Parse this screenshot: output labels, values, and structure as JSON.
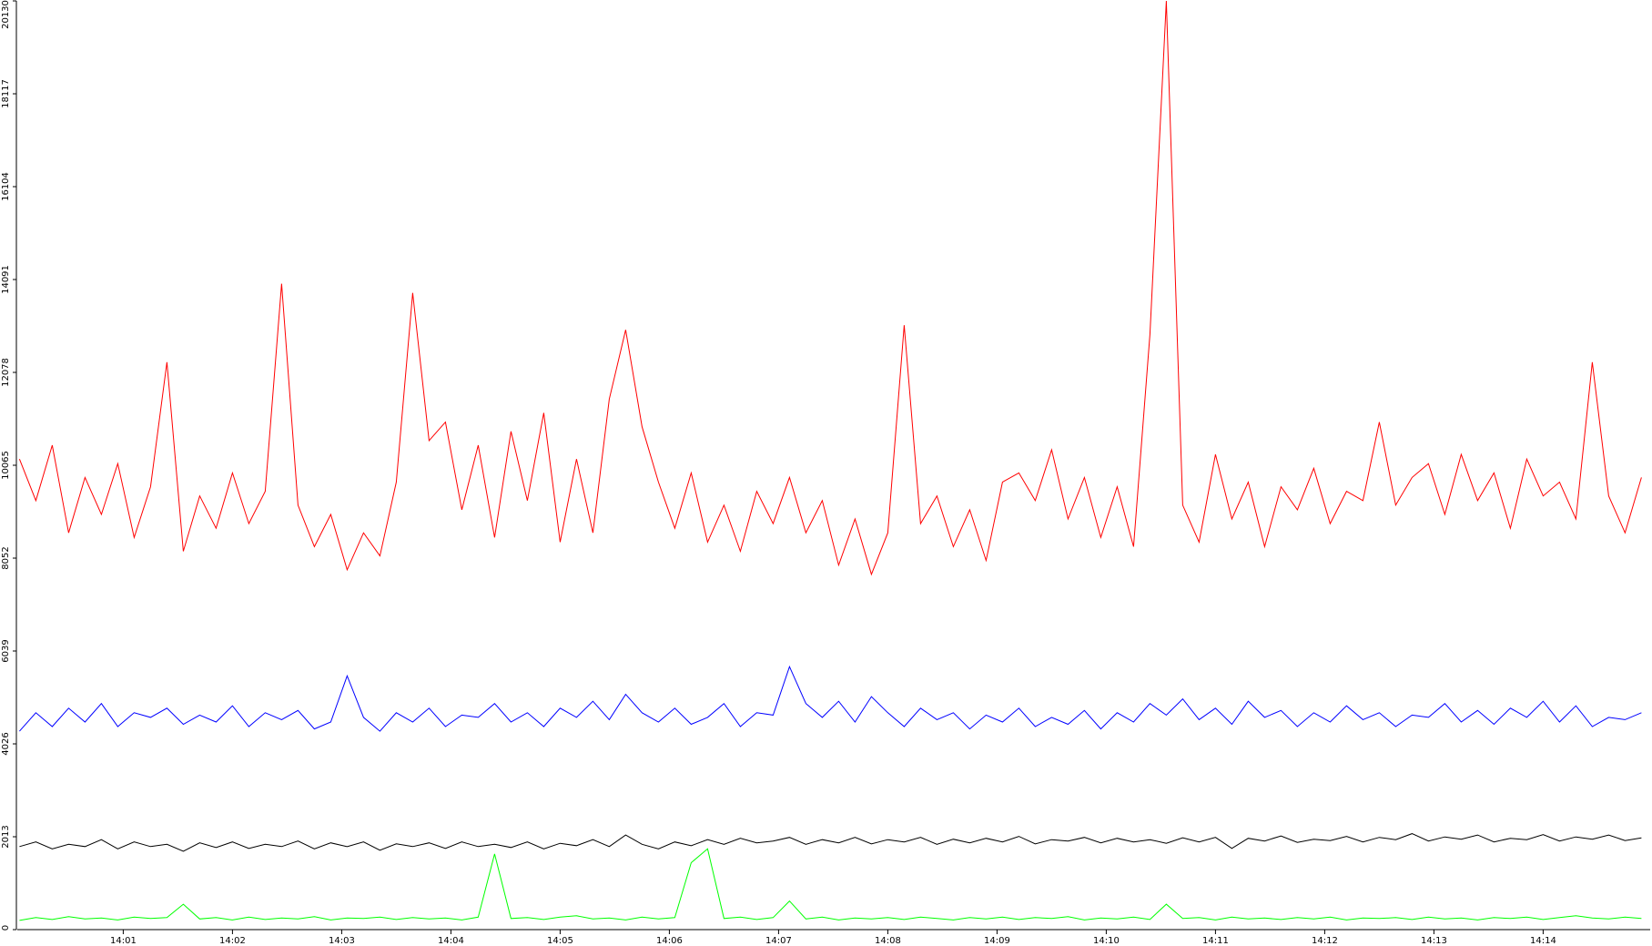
{
  "chart_data": {
    "type": "line",
    "x": [
      0.05,
      0.2,
      0.35,
      0.5,
      0.65,
      0.8,
      0.95,
      1.1,
      1.25,
      1.4,
      1.55,
      1.7,
      1.85,
      2,
      2.15,
      2.3,
      2.45,
      2.6,
      2.75,
      2.9,
      3.05,
      3.2,
      3.35,
      3.5,
      3.65,
      3.8,
      3.95,
      4.1,
      4.25,
      4.4,
      4.55,
      4.7,
      4.85,
      5,
      5.15,
      5.3,
      5.45,
      5.6,
      5.75,
      5.9,
      6.05,
      6.2,
      6.35,
      6.5,
      6.65,
      6.8,
      6.95,
      7.1,
      7.25,
      7.4,
      7.55,
      7.7,
      7.85,
      8,
      8.15,
      8.3,
      8.45,
      8.6,
      8.75,
      8.9,
      9.05,
      9.2,
      9.35,
      9.5,
      9.65,
      9.8,
      9.95,
      10.1,
      10.25,
      10.4,
      10.55,
      10.7,
      10.85,
      11,
      11.15,
      11.3,
      11.45,
      11.6,
      11.75,
      11.9,
      12.05,
      12.2,
      12.35,
      12.5,
      12.65,
      12.8,
      12.95,
      13.1,
      13.25,
      13.4,
      13.55,
      13.7,
      13.85,
      14,
      14.15,
      14.3,
      14.45,
      14.6,
      14.75,
      14.9
    ],
    "series": [
      {
        "color": "#ff0000",
        "values": [
          10200,
          9300,
          10500,
          8600,
          9800,
          9000,
          10100,
          8500,
          9600,
          12300,
          8200,
          9400,
          8700,
          9900,
          8800,
          9500,
          14000,
          9200,
          8300,
          9000,
          7800,
          8600,
          8100,
          9700,
          13800,
          10600,
          11000,
          9100,
          10500,
          8500,
          10800,
          9300,
          11200,
          8400,
          10200,
          8600,
          11500,
          13000,
          10900,
          9700,
          8700,
          9900,
          8400,
          9200,
          8200,
          9500,
          8800,
          9800,
          8600,
          9300,
          7900,
          8900,
          7700,
          8600,
          13100,
          8800,
          9400,
          8300,
          9100,
          8000,
          9700,
          9900,
          9300,
          10400,
          8900,
          9800,
          8500,
          9600,
          8300,
          12900,
          20130,
          9200,
          8400,
          10300,
          8900,
          9700,
          8300,
          9600,
          9100,
          10000,
          8800,
          9500,
          9300,
          11000,
          9200,
          9800,
          10100,
          9000,
          10300,
          9300,
          9900,
          8700,
          10200,
          9400,
          9700,
          8900,
          12300,
          9400,
          8600,
          9800
        ]
      },
      {
        "color": "#0000ff",
        "values": [
          4300,
          4700,
          4400,
          4800,
          4500,
          4900,
          4400,
          4700,
          4600,
          4800,
          4450,
          4650,
          4500,
          4850,
          4400,
          4700,
          4550,
          4750,
          4350,
          4500,
          5500,
          4600,
          4300,
          4700,
          4500,
          4800,
          4400,
          4650,
          4600,
          4900,
          4500,
          4700,
          4400,
          4800,
          4600,
          4950,
          4550,
          5100,
          4700,
          4500,
          4800,
          4450,
          4600,
          4900,
          4400,
          4700,
          4650,
          5700,
          4900,
          4600,
          4950,
          4500,
          5050,
          4700,
          4400,
          4800,
          4550,
          4700,
          4350,
          4650,
          4500,
          4800,
          4400,
          4600,
          4450,
          4750,
          4350,
          4700,
          4500,
          4900,
          4650,
          5000,
          4550,
          4800,
          4450,
          4950,
          4600,
          4750,
          4400,
          4700,
          4500,
          4850,
          4550,
          4700,
          4400,
          4650,
          4600,
          4900,
          4500,
          4750,
          4450,
          4800,
          4600,
          4950,
          4500,
          4850,
          4400,
          4600,
          4550,
          4700
        ]
      },
      {
        "color": "#000000",
        "values": [
          1800,
          1900,
          1750,
          1850,
          1800,
          1950,
          1750,
          1900,
          1800,
          1850,
          1700,
          1880,
          1780,
          1900,
          1760,
          1850,
          1800,
          1920,
          1750,
          1880,
          1800,
          1900,
          1720,
          1860,
          1800,
          1880,
          1760,
          1900,
          1800,
          1850,
          1780,
          1900,
          1750,
          1870,
          1820,
          1950,
          1800,
          2050,
          1850,
          1750,
          1900,
          1820,
          1950,
          1850,
          1980,
          1880,
          1920,
          2000,
          1850,
          1950,
          1880,
          2000,
          1860,
          1950,
          1900,
          2000,
          1850,
          1960,
          1880,
          1980,
          1900,
          2020,
          1860,
          1950,
          1920,
          2000,
          1880,
          1980,
          1900,
          1950,
          1870,
          1990,
          1900,
          2000,
          1760,
          1980,
          1920,
          2030,
          1890,
          1960,
          1930,
          2020,
          1900,
          2000,
          1950,
          2080,
          1920,
          2010,
          1960,
          2050,
          1900,
          1980,
          1950,
          2060,
          1920,
          2010,
          1960,
          2050,
          1930,
          1990
        ]
      },
      {
        "color": "#00ff00",
        "values": [
          200,
          260,
          220,
          280,
          230,
          250,
          210,
          270,
          240,
          260,
          550,
          230,
          260,
          210,
          270,
          220,
          250,
          230,
          280,
          210,
          250,
          240,
          270,
          220,
          260,
          230,
          250,
          210,
          270,
          1640,
          240,
          260,
          220,
          270,
          300,
          230,
          250,
          210,
          270,
          230,
          260,
          1450,
          1750,
          240,
          270,
          220,
          260,
          620,
          230,
          270,
          210,
          250,
          230,
          260,
          220,
          270,
          240,
          210,
          260,
          230,
          270,
          220,
          260,
          240,
          280,
          210,
          250,
          230,
          270,
          220,
          550,
          240,
          260,
          210,
          270,
          230,
          250,
          220,
          260,
          230,
          270,
          210,
          250,
          240,
          260,
          220,
          270,
          230,
          250,
          210,
          260,
          240,
          270,
          220,
          260,
          300,
          250,
          230,
          270,
          240
        ]
      }
    ],
    "xlim": [
      0.03,
      14.98
    ],
    "xticks": [
      {
        "value": 1,
        "label": "14:01"
      },
      {
        "value": 2,
        "label": "14:02"
      },
      {
        "value": 3,
        "label": "14:03"
      },
      {
        "value": 4,
        "label": "14:04"
      },
      {
        "value": 5,
        "label": "14:05"
      },
      {
        "value": 6,
        "label": "14:06"
      },
      {
        "value": 7,
        "label": "14:07"
      },
      {
        "value": 8,
        "label": "14:08"
      },
      {
        "value": 9,
        "label": "14:09"
      },
      {
        "value": 10,
        "label": "14:10"
      },
      {
        "value": 11,
        "label": "14:11"
      },
      {
        "value": 12,
        "label": "14:12"
      },
      {
        "value": 13,
        "label": "14:13"
      },
      {
        "value": 14,
        "label": "14:14"
      }
    ],
    "ylim": [
      0,
      20130
    ],
    "yticks": [
      0,
      2013,
      4026,
      6039,
      8052,
      10065,
      12078,
      14091,
      16104,
      18117,
      20130
    ]
  }
}
